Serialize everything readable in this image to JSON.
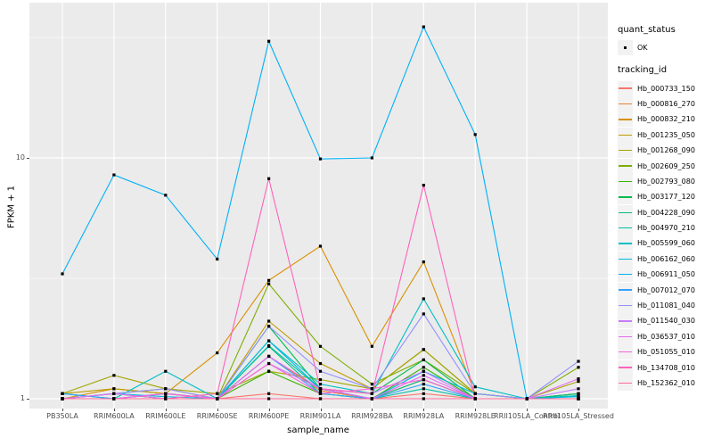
{
  "legend": {
    "quant_title": "quant_status",
    "quant_items": [
      "OK"
    ],
    "tracking_title": "tracking_id"
  },
  "colors": {
    "panel_bg": "#EBEBEB",
    "grid": "#FFFFFF",
    "legend_key_bg": "#F2F2F2",
    "axis_text": "#4D4D4D",
    "title_text": "#000000",
    "marker": "#000000"
  },
  "chart_data": {
    "type": "line",
    "title": "",
    "xlabel": "sample_name",
    "ylabel": "FPKM + 1",
    "y_scale": "log10",
    "y_ticks": [
      1,
      10
    ],
    "y_minor_gridlines": [
      3.162,
      31.62
    ],
    "ylim": [
      0.93,
      44
    ],
    "grid": "white major and minor gridlines on gray panel",
    "legend_position": "right",
    "marker": "small black square (quant_status = OK)",
    "categories": [
      "PB350LA",
      "RRIM600LA",
      "RRIM600LE",
      "RRIM600SE",
      "RRIM600PE",
      "RRIM901LA",
      "RRIM928BA",
      "RRIM928LA",
      "RRIM928LE",
      "RRII105LA_Control",
      "RRII105LA_Stressed"
    ],
    "series": [
      {
        "name": "Hb_000733_150",
        "color": "#F8766D",
        "values": [
          1.0,
          1.0,
          1.0,
          1.0,
          1.05,
          1.0,
          1.0,
          1.05,
          1.0,
          1.0,
          1.0
        ]
      },
      {
        "name": "Hb_000816_270",
        "color": "#EA8331",
        "values": [
          1.0,
          1.05,
          1.0,
          1.0,
          1.5,
          1.08,
          1.0,
          1.2,
          1.0,
          1.0,
          1.0
        ]
      },
      {
        "name": "Hb_000832_210",
        "color": "#D89000",
        "values": [
          1.0,
          1.1,
          1.05,
          1.55,
          3.1,
          4.3,
          1.65,
          3.7,
          1.05,
          1.0,
          1.0
        ]
      },
      {
        "name": "Hb_001235_050",
        "color": "#C09B00",
        "values": [
          1.05,
          1.1,
          1.05,
          1.0,
          2.1,
          1.4,
          1.1,
          1.6,
          1.05,
          1.0,
          1.05
        ]
      },
      {
        "name": "Hb_001268_090",
        "color": "#A3A500",
        "values": [
          1.05,
          1.25,
          1.1,
          1.05,
          1.3,
          1.2,
          1.1,
          1.6,
          1.05,
          1.0,
          1.18
        ]
      },
      {
        "name": "Hb_002609_250",
        "color": "#7CAE00",
        "values": [
          1.0,
          1.05,
          1.1,
          1.0,
          3.0,
          1.65,
          1.15,
          1.45,
          1.05,
          1.0,
          1.35
        ]
      },
      {
        "name": "Hb_002793_080",
        "color": "#39B600",
        "values": [
          1.0,
          1.0,
          1.05,
          1.0,
          1.3,
          1.05,
          1.0,
          1.35,
          1.0,
          1.0,
          1.05
        ]
      },
      {
        "name": "Hb_003177_120",
        "color": "#00BB4E",
        "values": [
          1.0,
          1.05,
          1.0,
          1.0,
          2.0,
          1.1,
          1.05,
          1.45,
          1.0,
          1.0,
          1.0
        ]
      },
      {
        "name": "Hb_004228_090",
        "color": "#00BF7D",
        "values": [
          1.0,
          1.0,
          1.05,
          1.0,
          1.65,
          1.05,
          1.0,
          1.2,
          1.0,
          1.0,
          1.05
        ]
      },
      {
        "name": "Hb_004970_210",
        "color": "#00C1A3",
        "values": [
          1.05,
          1.0,
          1.0,
          1.0,
          1.66,
          1.1,
          1.0,
          1.1,
          1.0,
          1.0,
          1.03
        ]
      },
      {
        "name": "Hb_005599_060",
        "color": "#00BFC4",
        "values": [
          1.05,
          1.0,
          1.3,
          1.0,
          1.74,
          1.15,
          1.05,
          2.6,
          1.12,
          1.0,
          1.03
        ]
      },
      {
        "name": "Hb_006162_060",
        "color": "#00BAE0",
        "values": [
          1.0,
          1.05,
          1.02,
          1.0,
          1.74,
          1.1,
          1.0,
          1.3,
          1.05,
          1.0,
          1.02
        ]
      },
      {
        "name": "Hb_006911_050",
        "color": "#00B0F6",
        "values": [
          3.3,
          8.5,
          7.0,
          3.8,
          30.5,
          9.9,
          10.0,
          35.0,
          12.5,
          1.0,
          1.0
        ]
      },
      {
        "name": "Hb_007012_070",
        "color": "#35A2FF",
        "values": [
          1.05,
          1.0,
          1.05,
          1.0,
          1.5,
          1.05,
          1.0,
          1.15,
          1.0,
          1.0,
          1.0
        ]
      },
      {
        "name": "Hb_011081_040",
        "color": "#9590FF",
        "values": [
          1.0,
          1.05,
          1.1,
          1.0,
          2.0,
          1.3,
          1.1,
          2.25,
          1.05,
          1.0,
          1.43
        ]
      },
      {
        "name": "Hb_011540_030",
        "color": "#C77CFF",
        "values": [
          1.0,
          1.0,
          1.05,
          1.0,
          1.4,
          1.1,
          1.05,
          1.3,
          1.0,
          1.0,
          1.1
        ]
      },
      {
        "name": "Hb_036537_010",
        "color": "#E76BF3",
        "values": [
          1.0,
          1.05,
          1.0,
          1.0,
          1.5,
          1.1,
          1.0,
          1.25,
          1.0,
          1.0,
          1.21
        ]
      },
      {
        "name": "Hb_051055_010",
        "color": "#FA62DB",
        "values": [
          1.0,
          1.0,
          1.05,
          1.0,
          1.4,
          1.05,
          1.1,
          1.2,
          1.0,
          1.0,
          1.0
        ]
      },
      {
        "name": "Hb_134708_010",
        "color": "#FF62BC",
        "values": [
          1.0,
          1.0,
          1.0,
          1.05,
          8.2,
          1.1,
          1.05,
          7.7,
          1.0,
          1.0,
          1.0
        ]
      },
      {
        "name": "Hb_152362_010",
        "color": "#FF6A98",
        "values": [
          1.0,
          1.0,
          1.0,
          1.0,
          1.0,
          1.0,
          1.0,
          1.0,
          1.0,
          1.0,
          1.0
        ]
      }
    ]
  }
}
